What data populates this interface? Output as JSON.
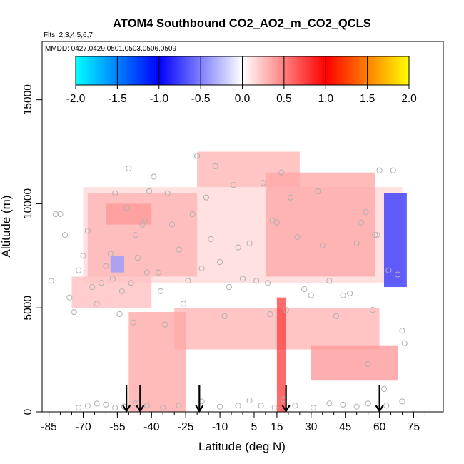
{
  "chart_data": {
    "type": "heatmap",
    "title": "ATOM4 Southbound CO2_AO2_m_CO2_QCLS",
    "subtitle_flights": "Flts: 2,3,4,5,6,7",
    "subtitle_dates": "MMDD: 0427,0429,0501,0503,0506,0509",
    "xlabel": "Latitude (deg N)",
    "ylabel": "Altitude (m)",
    "xlim": [
      -88,
      88
    ],
    "ylim": [
      0,
      17800
    ],
    "xticks": [
      -85,
      -70,
      -55,
      -40,
      -25,
      -10,
      5,
      15,
      30,
      45,
      60,
      75
    ],
    "xtick_labels": [
      "-85",
      "-70",
      "-55",
      "-40",
      "-25",
      "-10",
      "5",
      "15",
      "30",
      "45",
      "60",
      "75"
    ],
    "yticks": [
      0,
      5000,
      10000,
      15000
    ],
    "ytick_labels": [
      "0",
      "5000",
      "10000",
      "15000"
    ],
    "colorbar": {
      "min": -2.0,
      "max": 2.0,
      "ticks": [
        -2.0,
        -1.5,
        -1.0,
        -0.5,
        0.0,
        0.5,
        1.0,
        1.5,
        2.0
      ],
      "tick_labels": [
        "-2.0",
        "-1.5",
        "-1.0",
        "-0.5",
        "0.0",
        "0.5",
        "1.0",
        "1.5",
        "2.0"
      ],
      "colors": [
        "#00ffff",
        "#0080ff",
        "#0000ff",
        "#ffffff",
        "#ff0000",
        "#ff8000",
        "#ffff00"
      ]
    },
    "arrows_latitude": [
      -51,
      -45,
      -19,
      19,
      60
    ],
    "regions": [
      {
        "name": "main-upper-band",
        "lat": [
          -70,
          70
        ],
        "alt": [
          6200,
          10800
        ],
        "value": 0.15
      },
      {
        "name": "sh-mid-upper",
        "lat": [
          -68,
          -20
        ],
        "alt": [
          6500,
          10500
        ],
        "value": 0.3
      },
      {
        "name": "sh-mid-lower",
        "lat": [
          -75,
          -40
        ],
        "alt": [
          5000,
          6500
        ],
        "value": 0.25
      },
      {
        "name": "sh-upper-streak",
        "lat": [
          -60,
          -40
        ],
        "alt": [
          9000,
          10000
        ],
        "value": 0.4
      },
      {
        "name": "tropical-upper-cap",
        "lat": [
          -20,
          25
        ],
        "alt": [
          10800,
          12500
        ],
        "value": 0.3
      },
      {
        "name": "nh-upper-tropo",
        "lat": [
          10,
          58
        ],
        "alt": [
          6500,
          11500
        ],
        "value": 0.35
      },
      {
        "name": "nh-lower-tropo",
        "lat": [
          -30,
          60
        ],
        "alt": [
          3000,
          5000
        ],
        "value": 0.3
      },
      {
        "name": "nh-boundary-plume",
        "lat": [
          30,
          68
        ],
        "alt": [
          1500,
          3200
        ],
        "value": 0.4
      },
      {
        "name": "sh-boundary-wedge",
        "lat": [
          -50,
          -25
        ],
        "alt": [
          0,
          4800
        ],
        "value": 0.35
      },
      {
        "name": "itcz-column",
        "lat": [
          15,
          19
        ],
        "alt": [
          0,
          5500
        ],
        "value": 0.75
      },
      {
        "name": "arctic-blue-column",
        "lat": [
          62,
          72
        ],
        "alt": [
          6000,
          10500
        ],
        "value": -0.8
      },
      {
        "name": "sh-blue-patch",
        "lat": [
          -58,
          -52
        ],
        "alt": [
          6700,
          7500
        ],
        "value": -0.4
      }
    ],
    "sample_points": [
      [
        -84,
        6300
      ],
      [
        -82,
        9500
      ],
      [
        -80,
        9500
      ],
      [
        -78,
        8500
      ],
      [
        -76,
        5500
      ],
      [
        -74,
        4800
      ],
      [
        -72,
        6800
      ],
      [
        -70,
        7500
      ],
      [
        -68,
        8700
      ],
      [
        -66,
        6000
      ],
      [
        -64,
        5200
      ],
      [
        -62,
        6200
      ],
      [
        -60,
        7000
      ],
      [
        -58,
        7600
      ],
      [
        -57,
        6400
      ],
      [
        -56,
        10500
      ],
      [
        -54,
        4700
      ],
      [
        -53,
        5800
      ],
      [
        -51,
        9800
      ],
      [
        -50,
        11700
      ],
      [
        -49,
        6200
      ],
      [
        -48,
        4300
      ],
      [
        -47,
        8500
      ],
      [
        -46,
        7400
      ],
      [
        -44,
        9000
      ],
      [
        -43,
        9200
      ],
      [
        -42,
        6700
      ],
      [
        -41,
        10600
      ],
      [
        -39,
        11300
      ],
      [
        -37,
        6700
      ],
      [
        -36,
        5800
      ],
      [
        -34,
        4200
      ],
      [
        -33,
        10500
      ],
      [
        -31,
        9000
      ],
      [
        -28,
        7800
      ],
      [
        -26,
        5200
      ],
      [
        -24,
        6300
      ],
      [
        -22,
        9500
      ],
      [
        -20,
        12300
      ],
      [
        -18,
        6900
      ],
      [
        -16,
        10300
      ],
      [
        -14,
        8300
      ],
      [
        -12,
        11800
      ],
      [
        -10,
        7200
      ],
      [
        -8,
        4600
      ],
      [
        -6,
        6000
      ],
      [
        -4,
        10900
      ],
      [
        -2,
        7900
      ],
      [
        0,
        6400
      ],
      [
        3,
        8100
      ],
      [
        6,
        6300
      ],
      [
        9,
        11000
      ],
      [
        11,
        6200
      ],
      [
        12,
        4700
      ],
      [
        13,
        9200
      ],
      [
        15,
        9100
      ],
      [
        17,
        11500
      ],
      [
        19,
        4900
      ],
      [
        21,
        10300
      ],
      [
        24,
        8400
      ],
      [
        27,
        5900
      ],
      [
        30,
        5600
      ],
      [
        33,
        10600
      ],
      [
        35,
        8000
      ],
      [
        38,
        6300
      ],
      [
        41,
        4600
      ],
      [
        44,
        5600
      ],
      [
        47,
        5700
      ],
      [
        50,
        8100
      ],
      [
        52,
        9100
      ],
      [
        54,
        9600
      ],
      [
        55,
        2300
      ],
      [
        57,
        4900
      ],
      [
        58,
        8500
      ],
      [
        59,
        8500
      ],
      [
        60,
        11600
      ],
      [
        62,
        1100
      ],
      [
        64,
        6800
      ],
      [
        66,
        11600
      ],
      [
        68,
        6600
      ],
      [
        70,
        3900
      ],
      [
        71,
        3300
      ],
      [
        -72,
        200
      ],
      [
        -68,
        300
      ],
      [
        -64,
        400
      ],
      [
        -60,
        350
      ],
      [
        -56,
        200
      ],
      [
        -52,
        250
      ],
      [
        -47,
        400
      ],
      [
        -42,
        300
      ],
      [
        -35,
        200
      ],
      [
        -28,
        300
      ],
      [
        -18,
        500
      ],
      [
        -10,
        250
      ],
      [
        -2,
        300
      ],
      [
        3,
        550
      ],
      [
        8,
        300
      ],
      [
        14,
        200
      ],
      [
        18,
        600
      ],
      [
        23,
        300
      ],
      [
        31,
        200
      ],
      [
        38,
        400
      ],
      [
        44,
        350
      ],
      [
        50,
        250
      ],
      [
        55,
        400
      ],
      [
        63,
        300
      ],
      [
        70,
        500
      ]
    ]
  }
}
